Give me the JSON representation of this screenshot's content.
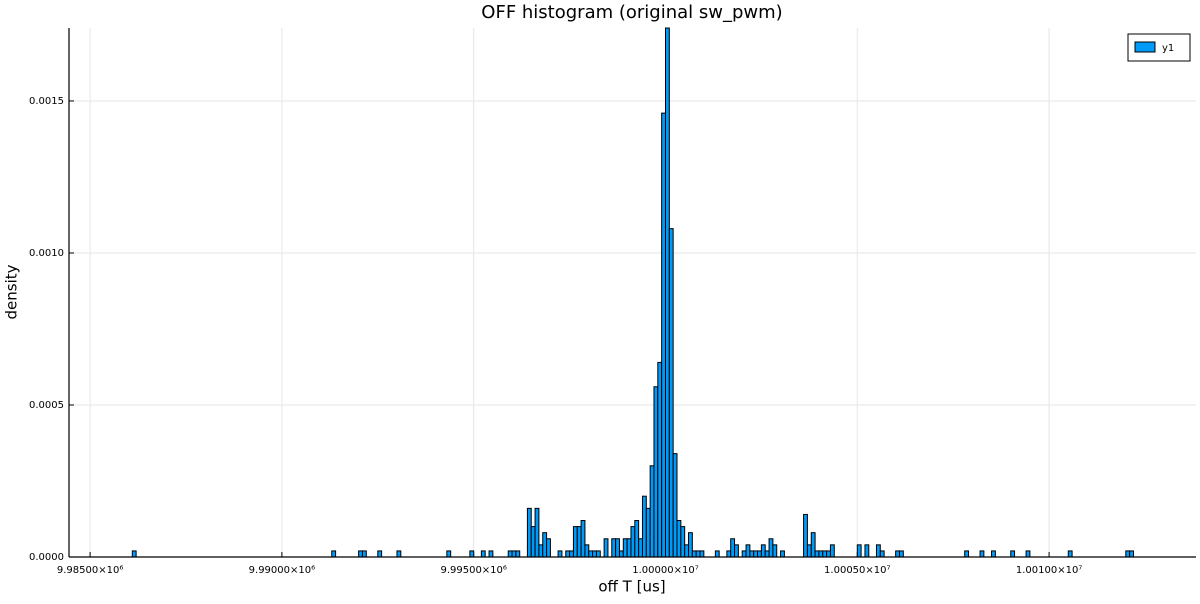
{
  "chart_data": {
    "type": "histogram",
    "title": "OFF histogram (original sw_pwm)",
    "x_label": "off T [us]",
    "y_label": "density",
    "series": [
      {
        "name": "y1",
        "color": "#009af9",
        "bins": [
          9986100,
          9986200,
          9991300,
          9991400,
          9992000,
          9992100,
          9992200,
          9992500,
          9992600,
          9993000,
          9993100,
          9994300,
          9994400,
          9994900,
          9995000,
          9995200,
          9995300,
          9995400,
          9995500,
          9995900,
          9996000,
          9996100,
          9996200,
          9996400,
          9996500,
          9996600,
          9996700,
          9996800,
          9996900,
          9997000,
          9997200,
          9997300,
          9997400,
          9997500,
          9997600,
          9997700,
          9997800,
          9997900,
          9998000,
          9998100,
          9998200,
          9998300,
          9998400,
          9998500,
          9998600,
          9998700,
          9998800,
          9998900,
          9999000,
          9999100,
          9999200,
          9999300,
          9999400,
          9999500,
          9999600,
          9999700,
          9999800,
          9999900,
          10000000,
          10000100,
          10000200,
          10000300,
          10000400,
          10000500,
          10000600,
          10000700,
          10000800,
          10000900,
          10001000,
          10001300,
          10001400,
          10001600,
          10001700,
          10001800,
          10001900,
          10002000,
          10002100,
          10002200,
          10002300,
          10002400,
          10002500,
          10002600,
          10002700,
          10002800,
          10002900,
          10003000,
          10003100,
          10003600,
          10003700,
          10003800,
          10003900,
          10004000,
          10004100,
          10004200,
          10004300,
          10004400,
          10005000,
          10005100,
          10005200,
          10005300,
          10005500,
          10005600,
          10005700,
          10006000,
          10006100,
          10006200,
          10007800,
          10007900,
          10008200,
          10008300,
          10008500,
          10008600,
          10009000,
          10009100,
          10009400,
          10009500,
          10010500,
          10010600,
          10012000,
          10012100,
          10012200
        ],
        "values": [
          2e-05,
          0,
          2e-05,
          0,
          2e-05,
          2e-05,
          0,
          2e-05,
          0,
          2e-05,
          0,
          2e-05,
          0,
          2e-05,
          0,
          2e-05,
          0,
          2e-05,
          0,
          2e-05,
          2e-05,
          2e-05,
          0,
          0.00016,
          0.0001,
          0.00016,
          4e-05,
          8e-05,
          6e-05,
          0,
          2e-05,
          0,
          2e-05,
          2e-05,
          0.0001,
          0.0001,
          0.00012,
          4e-05,
          2e-05,
          2e-05,
          2e-05,
          0,
          6e-05,
          0,
          6e-05,
          6e-05,
          2e-05,
          6e-05,
          6e-05,
          0.0001,
          0.00012,
          6e-05,
          0.0002,
          0.00016,
          0.0003,
          0.00056,
          0.00064,
          0.00146,
          0.00174,
          0.00108,
          0.00034,
          0.00012,
          0.0001,
          4e-05,
          8e-05,
          2e-05,
          2e-05,
          2e-05,
          0,
          2e-05,
          0,
          2e-05,
          6e-05,
          4e-05,
          0,
          2e-05,
          4e-05,
          2e-05,
          2e-05,
          2e-05,
          4e-05,
          2e-05,
          6e-05,
          4e-05,
          0,
          2e-05,
          0,
          0.00014,
          4e-05,
          8e-05,
          2e-05,
          2e-05,
          2e-05,
          2e-05,
          4e-05,
          0,
          4e-05,
          0,
          4e-05,
          0,
          4e-05,
          2e-05,
          0,
          2e-05,
          2e-05,
          0,
          2e-05,
          0,
          2e-05,
          0,
          2e-05,
          0,
          2e-05,
          0,
          2e-05,
          0,
          2e-05,
          0,
          2e-05,
          2e-05
        ]
      }
    ],
    "xlim": [
      9984450,
      10013830
    ],
    "xticks": [
      {
        "value": 9985000,
        "label": "9.98500×10⁶"
      },
      {
        "value": 9990000,
        "label": "9.99000×10⁶"
      },
      {
        "value": 9995000,
        "label": "9.99500×10⁶"
      },
      {
        "value": 10000000,
        "label": "1.00000×10⁷"
      },
      {
        "value": 10005000,
        "label": "1.00050×10⁷"
      },
      {
        "value": 10010000,
        "label": "1.00100×10⁷"
      }
    ],
    "ylim": [
      0,
      0.00174
    ],
    "yticks": [
      {
        "value": 0,
        "label": "0.0000"
      },
      0.0005,
      {
        "value": 0.001,
        "label": "0.0010"
      },
      0.0015
    ],
    "grid": true,
    "legend": "top-right"
  }
}
